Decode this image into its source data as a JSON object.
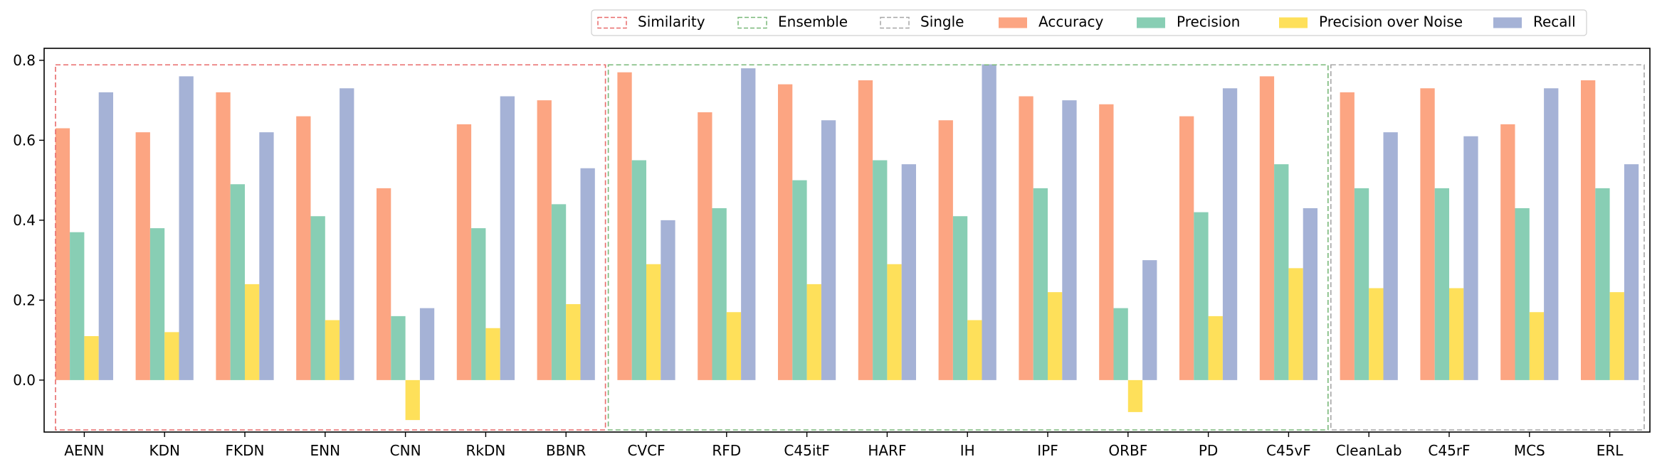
{
  "chart_data": {
    "type": "bar",
    "title": "",
    "xlabel": "",
    "ylabel": "",
    "ylim": [
      -0.13,
      0.83
    ],
    "yticks": [
      "0.0",
      "0.2",
      "0.4",
      "0.6",
      "0.8"
    ],
    "ytick_values": [
      0.0,
      0.2,
      0.4,
      0.6,
      0.8
    ],
    "categories": [
      "AENN",
      "KDN",
      "FKDN",
      "ENN",
      "CNN",
      "RkDN",
      "BBNR",
      "CVCF",
      "RFD",
      "C45itF",
      "HARF",
      "IH",
      "IPF",
      "ORBF",
      "PD",
      "C45vF",
      "CleanLab",
      "C45rF",
      "MCS",
      "ERL"
    ],
    "series": [
      {
        "name": "Accuracy",
        "color": "#fca582",
        "values": [
          0.63,
          0.62,
          0.72,
          0.66,
          0.48,
          0.64,
          0.7,
          0.77,
          0.67,
          0.74,
          0.75,
          0.65,
          0.71,
          0.69,
          0.66,
          0.76,
          0.72,
          0.73,
          0.64,
          0.75
        ]
      },
      {
        "name": "Precision",
        "color": "#88ceb4",
        "values": [
          0.37,
          0.38,
          0.49,
          0.41,
          0.16,
          0.38,
          0.44,
          0.55,
          0.43,
          0.5,
          0.55,
          0.41,
          0.48,
          0.18,
          0.42,
          0.54,
          0.48,
          0.48,
          0.43,
          0.48
        ]
      },
      {
        "name": "Precision over Noise",
        "color": "#fee05a",
        "values": [
          0.11,
          0.12,
          0.24,
          0.15,
          -0.1,
          0.13,
          0.19,
          0.29,
          0.17,
          0.24,
          0.29,
          0.15,
          0.22,
          -0.08,
          0.16,
          0.28,
          0.23,
          0.23,
          0.17,
          0.22
        ]
      },
      {
        "name": "Recall",
        "color": "#a5b2d6",
        "values": [
          0.72,
          0.76,
          0.62,
          0.73,
          0.18,
          0.71,
          0.53,
          0.4,
          0.78,
          0.65,
          0.54,
          0.79,
          0.7,
          0.3,
          0.73,
          0.43,
          0.62,
          0.61,
          0.73,
          0.54
        ]
      }
    ],
    "groups": [
      {
        "name": "Similarity",
        "color": "#e86b6b",
        "members": [
          "AENN",
          "KDN",
          "FKDN",
          "ENN",
          "CNN",
          "RkDN",
          "BBNR"
        ]
      },
      {
        "name": "Ensemble",
        "color": "#78b878",
        "members": [
          "CVCF",
          "RFD",
          "C45itF",
          "HARF",
          "IH",
          "IPF",
          "ORBF",
          "PD",
          "C45vF"
        ]
      },
      {
        "name": "Single",
        "color": "#a6a6a6",
        "members": [
          "CleanLab",
          "C45rF",
          "MCS",
          "ERL"
        ]
      }
    ],
    "grid": false,
    "legend_position": "top-right-above"
  }
}
